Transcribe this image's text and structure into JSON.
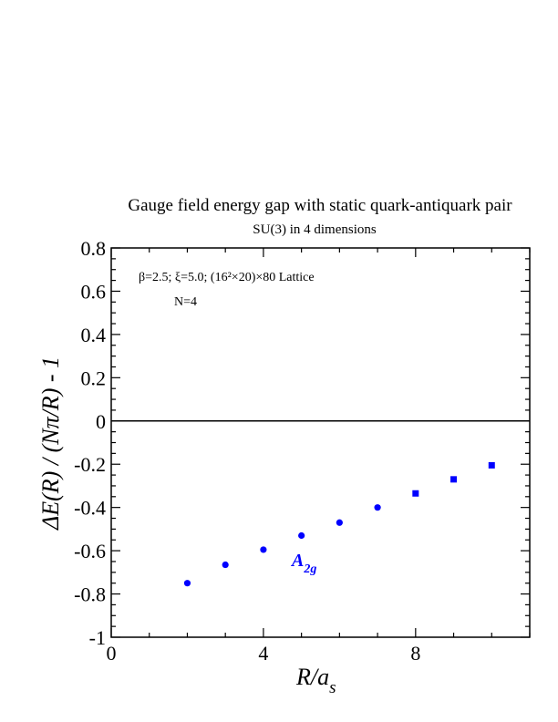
{
  "chart_data": {
    "type": "scatter",
    "title": "Gauge field energy gap with static quark-antiquark pair",
    "subtitle": "SU(3) in 4 dimensions",
    "xlabel": "R/a_s",
    "xlabel_main": "R/a",
    "xlabel_sub": "s",
    "ylabel": "ΔE(R) / (Nπ/R) - 1",
    "xlim": [
      0,
      11
    ],
    "ylim": [
      -1,
      0.8
    ],
    "x_ticks": [
      0,
      4,
      8
    ],
    "x_tick_labels": [
      "0",
      "4",
      "8"
    ],
    "y_ticks": [
      -1,
      -0.8,
      -0.6,
      -0.4,
      -0.2,
      0,
      0.2,
      0.4,
      0.6,
      0.8
    ],
    "y_tick_labels": [
      "-1",
      "-0.8",
      "-0.6",
      "-0.4",
      "-0.2",
      "0",
      "0.2",
      "0.4",
      "0.6",
      "0.8"
    ],
    "grid": false,
    "reference_line_y": 0,
    "annotations": {
      "params_line": "β=2.5;  ξ=5.0; (16²×20)×80 Lattice",
      "n_line": "N=4"
    },
    "series": [
      {
        "name": "A2g",
        "label_main": "A",
        "label_sub": "2g",
        "color": "#0000ff",
        "points": [
          {
            "x": 2,
            "y": -0.75,
            "marker": "circle"
          },
          {
            "x": 3,
            "y": -0.665,
            "marker": "circle"
          },
          {
            "x": 4,
            "y": -0.595,
            "marker": "circle"
          },
          {
            "x": 5,
            "y": -0.53,
            "marker": "circle"
          },
          {
            "x": 6,
            "y": -0.47,
            "marker": "circle"
          },
          {
            "x": 7,
            "y": -0.4,
            "marker": "circle"
          },
          {
            "x": 8,
            "y": -0.335,
            "marker": "square"
          },
          {
            "x": 9,
            "y": -0.27,
            "marker": "square"
          },
          {
            "x": 10,
            "y": -0.205,
            "marker": "square"
          }
        ]
      }
    ]
  }
}
